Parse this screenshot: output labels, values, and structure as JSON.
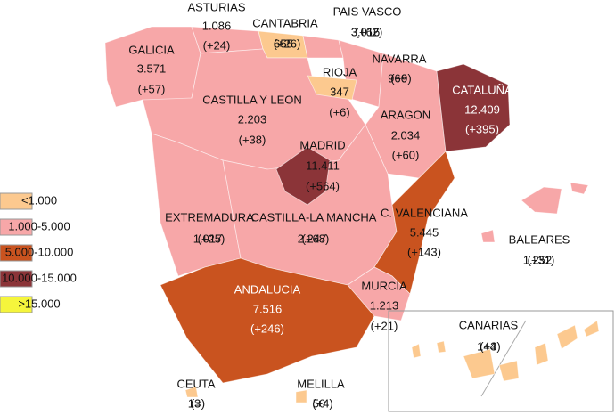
{
  "legend": [
    {
      "label": "<1.000",
      "color": "#fcc98f"
    },
    {
      "label": "1.000-5.000",
      "color": "#f7a7a8"
    },
    {
      "label": "5.000-10.000",
      "color": "#c9531f"
    },
    {
      "label": "10.000-15.000",
      "color": "#8b3438"
    },
    {
      "label": ">15.000",
      "color": "#f5f53c"
    }
  ],
  "regions": [
    {
      "name": "GALICIA",
      "value": "3.571",
      "change": "(+57)",
      "color": "#f7a7a8"
    },
    {
      "name": "ASTURIAS",
      "value": "1.086",
      "change": "(+24)",
      "color": "#f7a7a8"
    },
    {
      "name": "CANTABRIA",
      "value": "655",
      "change": "(+26)",
      "color": "#fcc98f"
    },
    {
      "name": "PAIS VASCO",
      "value": "3.016",
      "change": "(+62)",
      "color": "#f7a7a8"
    },
    {
      "name": "NAVARRA",
      "value": "966",
      "change": "(+9)",
      "color": "#f7a7a8"
    },
    {
      "name": "RIOJA",
      "value": "347",
      "change": "(+6)",
      "color": "#fcc98f"
    },
    {
      "name": "CASTILLA Y LEON",
      "value": "2.203",
      "change": "(+38)",
      "color": "#f7a7a8"
    },
    {
      "name": "ARAGON",
      "value": "2.034",
      "change": "(+60)",
      "color": "#f7a7a8"
    },
    {
      "name": "CATALUÑA",
      "value": "12.409",
      "change": "(+395)",
      "color": "#8b3438"
    },
    {
      "name": "MADRID",
      "value": "11.411",
      "change": "(+564)",
      "color": "#8b3438"
    },
    {
      "name": "EXTREMADURA",
      "value": "1.017",
      "change": "(+25)",
      "color": "#f7a7a8"
    },
    {
      "name": "CASTILLA-LA MANCHA",
      "value": "2.247",
      "change": "(+68)",
      "color": "#f7a7a8"
    },
    {
      "name": "C. VALENCIANA",
      "value": "5.445",
      "change": "(+143)",
      "color": "#c9531f"
    },
    {
      "name": "BALEARES",
      "value": "1.252",
      "change": "(+31)",
      "color": "#f7a7a8"
    },
    {
      "name": "ANDALUCIA",
      "value": "7.516",
      "change": "(+246)",
      "color": "#c9531f"
    },
    {
      "name": "MURCIA",
      "value": "1.213",
      "change": "(+21)",
      "color": "#f7a7a8"
    },
    {
      "name": "CANARIAS",
      "value": "144",
      "change": "(+3)",
      "color": "#fcc98f"
    },
    {
      "name": "CEUTA",
      "value": "13",
      "change": "(=)",
      "color": "#fcc98f"
    },
    {
      "name": "MELILLA",
      "value": "50",
      "change": "(+4)",
      "color": "#fcc98f"
    }
  ]
}
